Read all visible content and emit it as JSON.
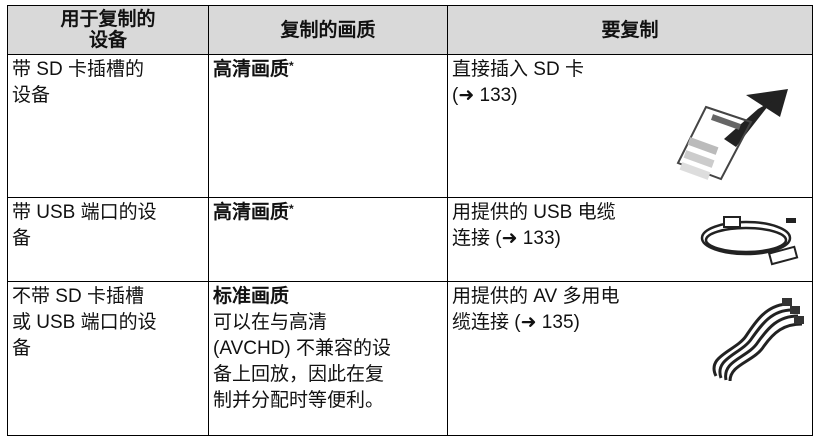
{
  "table": {
    "headers": [
      [
        "用于复制的",
        "设备"
      ],
      [
        "复制的画质"
      ],
      [
        "要复制"
      ]
    ],
    "rows": [
      {
        "device": [
          "带 SD 卡插槽的",
          "设备"
        ],
        "quality": {
          "name": "高清画质",
          "mark": "*"
        },
        "method": [
          "直接插入 SD 卡",
          "(➜ 133)"
        ]
      },
      {
        "device": [
          "带 USB 端口的设",
          "备"
        ],
        "quality": {
          "name": "高清画质",
          "mark": "*"
        },
        "method": [
          "用提供的 USB 电缆",
          "连接 (➜ 133)"
        ]
      },
      {
        "device": [
          "不带 SD 卡插槽",
          "或 USB 端口的设",
          "备"
        ],
        "quality": {
          "name": "标准画质",
          "notes": [
            "可以在与高清",
            "(AVCHD) 不兼容的设",
            "备上回放，因此在复",
            "制并分配时等便利。"
          ]
        },
        "method": [
          "用提供的 AV 多用电",
          "缆连接 (➜ 135)"
        ]
      }
    ]
  }
}
